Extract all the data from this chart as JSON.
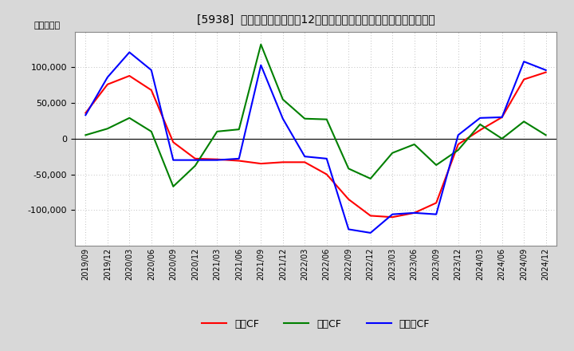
{
  "title": "[5938]  キャッシュフローの12か月移動合計の対前年同期増減額の推移",
  "ylabel": "（百万円）",
  "background_color": "#d8d8d8",
  "plot_background_color": "#ffffff",
  "x_labels": [
    "2019/09",
    "2019/12",
    "2020/03",
    "2020/06",
    "2020/09",
    "2020/12",
    "2021/03",
    "2021/06",
    "2021/09",
    "2021/12",
    "2022/03",
    "2022/06",
    "2022/09",
    "2022/12",
    "2023/03",
    "2023/06",
    "2023/09",
    "2023/12",
    "2024/03",
    "2024/06",
    "2024/09",
    "2024/12"
  ],
  "operating_cf": [
    36000,
    76000,
    88000,
    68000,
    -5000,
    -28000,
    -29000,
    -31000,
    -35000,
    -33000,
    -33000,
    -50000,
    -85000,
    -108000,
    -110000,
    -104000,
    -90000,
    -8000,
    12000,
    30000,
    83000,
    93000
  ],
  "investing_cf": [
    5000,
    14000,
    29000,
    10000,
    -67000,
    -38000,
    10000,
    13000,
    132000,
    55000,
    28000,
    27000,
    -42000,
    -56000,
    -20000,
    -8000,
    -37000,
    -16000,
    20000,
    0,
    24000,
    5000
  ],
  "free_cf": [
    33000,
    86000,
    121000,
    96000,
    -30000,
    -30000,
    -30000,
    -28000,
    103000,
    28000,
    -25000,
    -28000,
    -127000,
    -132000,
    -106000,
    -104000,
    -106000,
    5000,
    29000,
    30000,
    108000,
    96000
  ],
  "operating_color": "#ff0000",
  "investing_color": "#008000",
  "free_color": "#0000ff",
  "ylim_min": -150000,
  "ylim_max": 150000,
  "yticks": [
    -100000,
    -50000,
    0,
    50000,
    100000
  ],
  "grid_color": "#aaaaaa",
  "line_width": 1.5,
  "legend_labels": [
    "営業CF",
    "投資CF",
    "フリーCF"
  ]
}
